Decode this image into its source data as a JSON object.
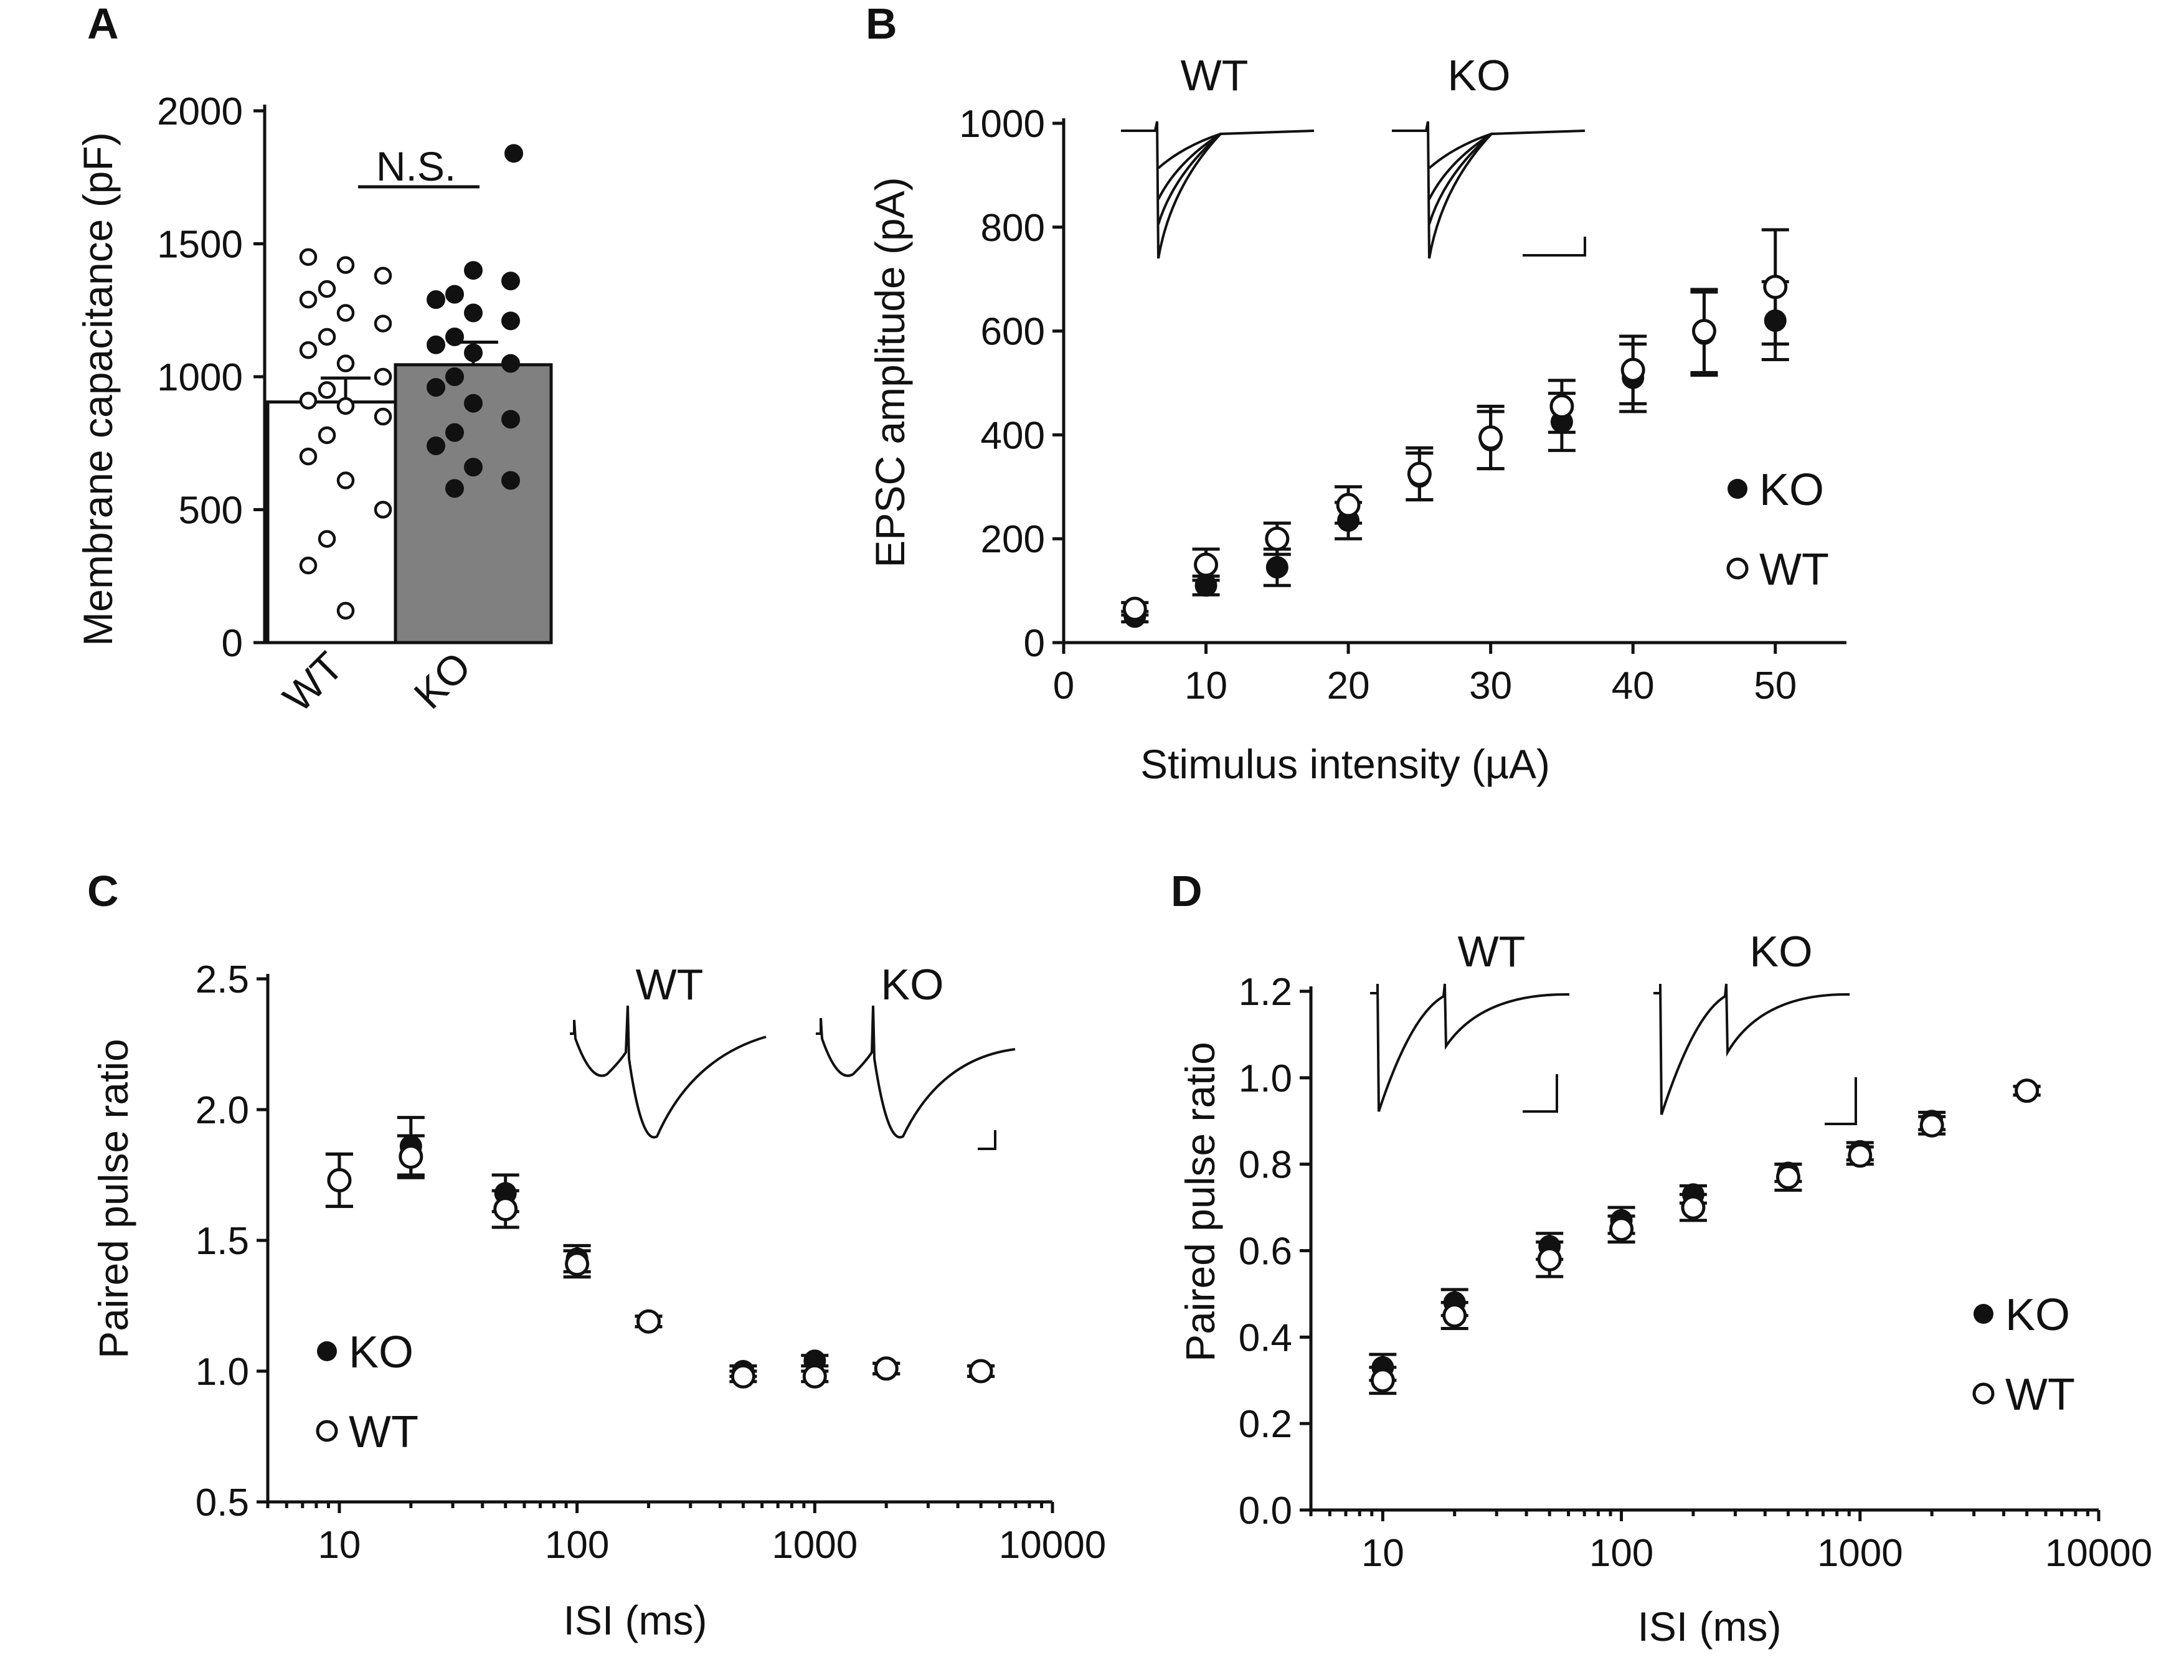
{
  "chart_data": [
    {
      "panel": "A",
      "type": "bar",
      "ylabel": "Membrane capacitance (pF)",
      "ylim": [
        0,
        2000
      ],
      "yticks": [
        0,
        500,
        1000,
        1500,
        2000
      ],
      "categories": [
        "WT",
        "KO"
      ],
      "means": [
        905,
        1045
      ],
      "sem": [
        90,
        85
      ],
      "bar_colors": [
        "#ffffff",
        "#808080"
      ],
      "annotation": "N.S.",
      "points": {
        "WT": [
          1450,
          1420,
          1380,
          1330,
          1290,
          1240,
          1200,
          1150,
          1100,
          1050,
          1000,
          950,
          910,
          890,
          850,
          780,
          700,
          610,
          500,
          390,
          290,
          120
        ],
        "KO": [
          1840,
          1400,
          1360,
          1310,
          1290,
          1240,
          1210,
          1150,
          1120,
          1090,
          1050,
          1000,
          960,
          900,
          840,
          790,
          740,
          660,
          610,
          580
        ]
      }
    },
    {
      "panel": "B",
      "type": "scatter",
      "xlabel": "Stimulus intensity (µA)",
      "ylabel": "EPSC amplitude (pA)",
      "xlim": [
        0,
        55
      ],
      "ylim": [
        0,
        1000
      ],
      "xticks": [
        0,
        10,
        20,
        30,
        40,
        50
      ],
      "yticks": [
        0,
        200,
        400,
        600,
        800,
        1000
      ],
      "x": [
        5,
        10,
        15,
        20,
        25,
        30,
        35,
        40,
        45,
        50
      ],
      "series": [
        {
          "name": "KO",
          "marker": "filled",
          "values": [
            50,
            110,
            145,
            235,
            320,
            390,
            425,
            510,
            595,
            620
          ],
          "err": [
            10,
            18,
            35,
            35,
            45,
            55,
            55,
            65,
            80,
            75
          ]
        },
        {
          "name": "WT",
          "marker": "open",
          "values": [
            65,
            150,
            200,
            265,
            325,
            395,
            455,
            525,
            600,
            685
          ],
          "err": [
            12,
            30,
            30,
            35,
            50,
            60,
            50,
            65,
            80,
            110
          ]
        }
      ],
      "inset_labels": [
        "WT",
        "KO"
      ]
    },
    {
      "panel": "C",
      "type": "scatter",
      "xscale": "log",
      "xlabel": "ISI (ms)",
      "ylabel": "Paired pulse ratio",
      "xlim": [
        5,
        10000
      ],
      "ylim": [
        0.5,
        2.5
      ],
      "xticks": [
        10,
        100,
        1000,
        10000
      ],
      "yticks": [
        0.5,
        1.0,
        1.5,
        2.0,
        2.5
      ],
      "x": [
        10,
        20,
        50,
        100,
        200,
        500,
        1000,
        2000,
        5000
      ],
      "series": [
        {
          "name": "KO",
          "marker": "filled",
          "values": [
            1.73,
            1.86,
            1.68,
            1.43,
            1.19,
            1.0,
            1.04,
            1.01,
            1.0
          ],
          "err": [
            0.1,
            0.11,
            0.07,
            0.05,
            0.02,
            0.02,
            0.02,
            0.02,
            0.02
          ]
        },
        {
          "name": "WT",
          "marker": "open",
          "values": [
            1.73,
            1.82,
            1.62,
            1.41,
            1.19,
            0.98,
            0.98,
            1.01,
            1.0
          ],
          "err": [
            0.1,
            0.08,
            0.07,
            0.05,
            0.02,
            0.02,
            0.02,
            0.02,
            0.02
          ]
        }
      ],
      "inset_labels": [
        "WT",
        "KO"
      ]
    },
    {
      "panel": "D",
      "type": "scatter",
      "xscale": "log",
      "xlabel": "ISI (ms)",
      "ylabel": "Paired pulse ratio",
      "xlim": [
        5,
        10000
      ],
      "ylim": [
        0.0,
        1.2
      ],
      "xticks": [
        10,
        100,
        1000,
        10000
      ],
      "yticks": [
        0.0,
        0.2,
        0.4,
        0.6,
        0.8,
        1.0,
        1.2
      ],
      "x": [
        10,
        20,
        50,
        100,
        200,
        500,
        1000,
        2000,
        5000
      ],
      "series": [
        {
          "name": "KO",
          "marker": "filled",
          "values": [
            0.33,
            0.48,
            0.61,
            0.67,
            0.73,
            0.78,
            0.83,
            0.9,
            0.97
          ],
          "err": [
            0.03,
            0.03,
            0.03,
            0.03,
            0.02,
            0.02,
            0.02,
            0.02,
            0.01
          ]
        },
        {
          "name": "WT",
          "marker": "open",
          "values": [
            0.3,
            0.45,
            0.58,
            0.65,
            0.7,
            0.77,
            0.82,
            0.89,
            0.97
          ],
          "err": [
            0.03,
            0.03,
            0.04,
            0.03,
            0.03,
            0.03,
            0.02,
            0.02,
            0.01
          ]
        }
      ],
      "inset_labels": [
        "WT",
        "KO"
      ]
    }
  ],
  "panel_letters": [
    "A",
    "B",
    "C",
    "D"
  ]
}
